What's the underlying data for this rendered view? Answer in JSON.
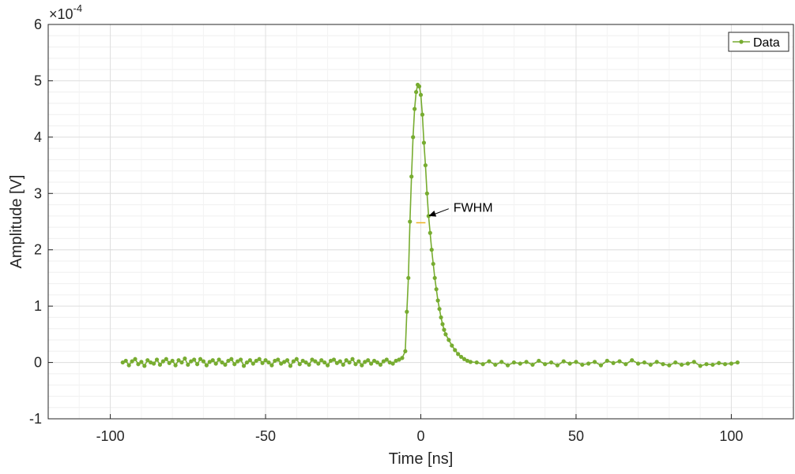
{
  "chart_data": {
    "type": "line",
    "title": "",
    "xlabel": "Time [ns]",
    "ylabel": "Amplitude [V]",
    "y_exponent_label": "×10",
    "y_exponent_power": "-4",
    "xlim": [
      -120,
      120
    ],
    "ylim": [
      -1,
      6
    ],
    "xticks": [
      -100,
      -50,
      0,
      50,
      100
    ],
    "yticks": [
      -1,
      0,
      1,
      2,
      3,
      4,
      5,
      6
    ],
    "xtick_labels": [
      "-100",
      "-50",
      "0",
      "50",
      "100"
    ],
    "ytick_labels": [
      "-1",
      "0",
      "1",
      "2",
      "3",
      "4",
      "5",
      "6"
    ],
    "grid": true,
    "minor_grid": true,
    "legend": {
      "position": "top-right",
      "entries": [
        "Data"
      ]
    },
    "series": [
      {
        "name": "Data",
        "color": "#77ac30",
        "marker": "dot",
        "x": [
          -96,
          -95,
          -94,
          -93,
          -92,
          -91,
          -90,
          -89,
          -88,
          -87,
          -86,
          -85,
          -84,
          -83,
          -82,
          -81,
          -80,
          -79,
          -78,
          -77,
          -76,
          -75,
          -74,
          -73,
          -72,
          -71,
          -70,
          -69,
          -68,
          -67,
          -66,
          -65,
          -64,
          -63,
          -62,
          -61,
          -60,
          -59,
          -58,
          -57,
          -56,
          -55,
          -54,
          -53,
          -52,
          -51,
          -50,
          -49,
          -48,
          -47,
          -46,
          -45,
          -44,
          -43,
          -42,
          -41,
          -40,
          -39,
          -38,
          -37,
          -36,
          -35,
          -34,
          -33,
          -32,
          -31,
          -30,
          -29,
          -28,
          -27,
          -26,
          -25,
          -24,
          -23,
          -22,
          -21,
          -20,
          -19,
          -18,
          -17,
          -16,
          -15,
          -14,
          -13,
          -12,
          -11,
          -10,
          -9,
          -8,
          -7,
          -6,
          -5,
          -4.5,
          -4,
          -3.5,
          -3,
          -2.5,
          -2,
          -1.5,
          -1,
          -0.5,
          0,
          0.5,
          1,
          1.5,
          2,
          2.5,
          3,
          3.5,
          4,
          4.5,
          5,
          5.5,
          6,
          6.5,
          7,
          7.5,
          8,
          9,
          10,
          11,
          12,
          13,
          14,
          15,
          16,
          18,
          20,
          22,
          24,
          26,
          28,
          30,
          32,
          34,
          36,
          38,
          40,
          42,
          44,
          46,
          48,
          50,
          52,
          54,
          56,
          58,
          60,
          62,
          64,
          66,
          68,
          70,
          72,
          74,
          76,
          78,
          80,
          82,
          84,
          86,
          88,
          90,
          92,
          94,
          96,
          98,
          100,
          102
        ],
        "y": [
          0.0,
          0.03,
          -0.05,
          0.02,
          0.06,
          -0.03,
          0.01,
          -0.06,
          0.04,
          0.0,
          -0.02,
          0.05,
          -0.04,
          0.02,
          0.06,
          -0.01,
          0.03,
          -0.05,
          0.04,
          0.0,
          0.07,
          -0.04,
          0.02,
          0.05,
          -0.03,
          0.06,
          0.02,
          -0.05,
          0.01,
          0.04,
          -0.02,
          0.05,
          0.0,
          -0.04,
          0.03,
          0.06,
          -0.03,
          0.02,
          0.05,
          -0.06,
          0.0,
          0.04,
          -0.02,
          0.03,
          0.06,
          -0.01,
          0.04,
          0.0,
          -0.05,
          0.03,
          0.05,
          -0.02,
          0.01,
          0.04,
          -0.06,
          0.02,
          0.06,
          -0.03,
          0.03,
          0.0,
          -0.04,
          0.05,
          0.02,
          -0.02,
          0.04,
          0.0,
          -0.05,
          0.03,
          0.05,
          -0.01,
          0.02,
          -0.04,
          0.04,
          0.0,
          0.06,
          -0.03,
          0.02,
          -0.05,
          0.01,
          0.04,
          -0.02,
          0.03,
          0.0,
          -0.04,
          0.02,
          0.05,
          0.0,
          -0.02,
          0.03,
          0.05,
          0.08,
          0.2,
          0.9,
          1.5,
          2.5,
          3.3,
          4.0,
          4.5,
          4.8,
          4.93,
          4.9,
          4.75,
          4.4,
          3.9,
          3.5,
          3.0,
          2.6,
          2.3,
          2.0,
          1.75,
          1.5,
          1.3,
          1.1,
          0.95,
          0.8,
          0.68,
          0.58,
          0.5,
          0.4,
          0.3,
          0.22,
          0.15,
          0.1,
          0.06,
          0.03,
          0.01,
          0.0,
          -0.03,
          0.02,
          -0.04,
          0.01,
          -0.05,
          0.0,
          -0.02,
          0.01,
          -0.04,
          0.03,
          -0.03,
          0.0,
          -0.05,
          0.02,
          -0.02,
          0.01,
          -0.04,
          -0.02,
          0.01,
          -0.05,
          0.03,
          -0.01,
          0.02,
          -0.03,
          0.04,
          -0.02,
          0.0,
          -0.04,
          0.01,
          -0.03,
          -0.05,
          0.0,
          -0.04,
          -0.02,
          0.01,
          -0.06,
          -0.03,
          -0.04,
          -0.01,
          -0.03,
          -0.02,
          0.0
        ]
      }
    ],
    "annotations": [
      {
        "text": "FWHM",
        "x": 10,
        "y": 2.7,
        "arrow_to": [
          2.5,
          2.6
        ]
      }
    ],
    "fwhm_line": {
      "x": [
        -1.5,
        1.5
      ],
      "y": 2.48,
      "color": "#edb120"
    }
  }
}
